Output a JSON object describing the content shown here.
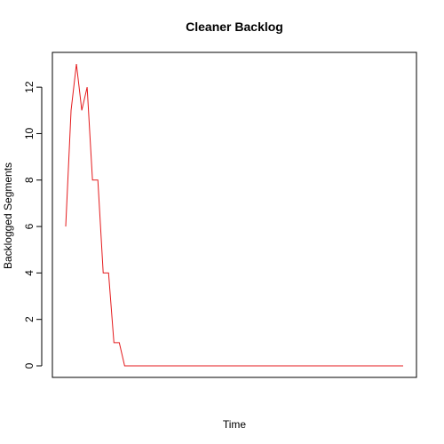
{
  "chart_data": {
    "type": "line",
    "title": "Cleaner Backlog",
    "xlabel": "Time",
    "ylabel": "Backlogged Segments",
    "ylim": [
      0,
      13
    ],
    "yticks": [
      0,
      2,
      4,
      6,
      8,
      10,
      12
    ],
    "x_ticks_shown": false,
    "grid": false,
    "legend": "none",
    "colors": {
      "series": "#e41a1c"
    },
    "series": [
      {
        "x": [
          1,
          2,
          3,
          4,
          5,
          6,
          7,
          8,
          9,
          10,
          11,
          12,
          13,
          14,
          64
        ],
        "values": [
          6,
          11,
          13,
          11,
          12,
          8,
          8,
          4,
          4,
          1,
          1,
          0,
          0,
          0,
          0
        ]
      }
    ]
  }
}
